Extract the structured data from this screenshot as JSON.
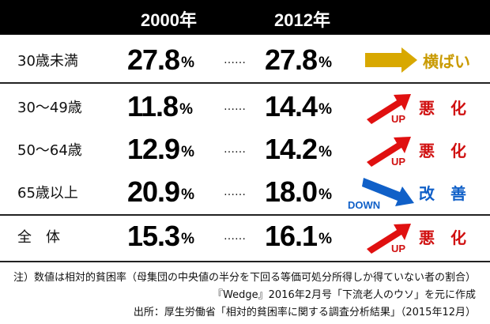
{
  "chart_data": {
    "type": "table",
    "columns": [
      "2000年",
      "2012年"
    ],
    "rows": [
      {
        "label": "30歳未満",
        "v2000": "27.8",
        "v2012": "27.8",
        "trend": "横ばい",
        "direction": "flat"
      },
      {
        "label": "30～49歳",
        "v2000": "11.8",
        "v2012": "14.4",
        "trend": "悪　化",
        "direction": "up"
      },
      {
        "label": "50～64歳",
        "v2000": "12.9",
        "v2012": "14.2",
        "trend": "悪　化",
        "direction": "up"
      },
      {
        "label": "65歳以上",
        "v2000": "20.9",
        "v2012": "18.0",
        "trend": "改　善",
        "direction": "down"
      },
      {
        "label": "全　体",
        "v2000": "15.3",
        "v2012": "16.1",
        "trend": "悪　化",
        "direction": "up"
      }
    ],
    "unit": "%",
    "dots": "……",
    "up_label": "UP",
    "down_label": "DOWN",
    "notes": [
      "注）数値は相対的貧困率（母集団の中央値の半分を下回る等価可処分所得しか得ていない者の割合）",
      "『Wedge』2016年2月号「下流老人のウソ」を元に作成",
      "出所：厚生労働省「相対的貧困率に関する調査分析結果」（2015年12月）"
    ]
  },
  "colors": {
    "header_bg": "#000000",
    "row_border": "#222222",
    "flat": "#d8a800",
    "up": "#e01010",
    "down": "#1060c8",
    "flat_text": "#c99a00",
    "up_text": "#d01010",
    "down_text": "#1060c8"
  }
}
